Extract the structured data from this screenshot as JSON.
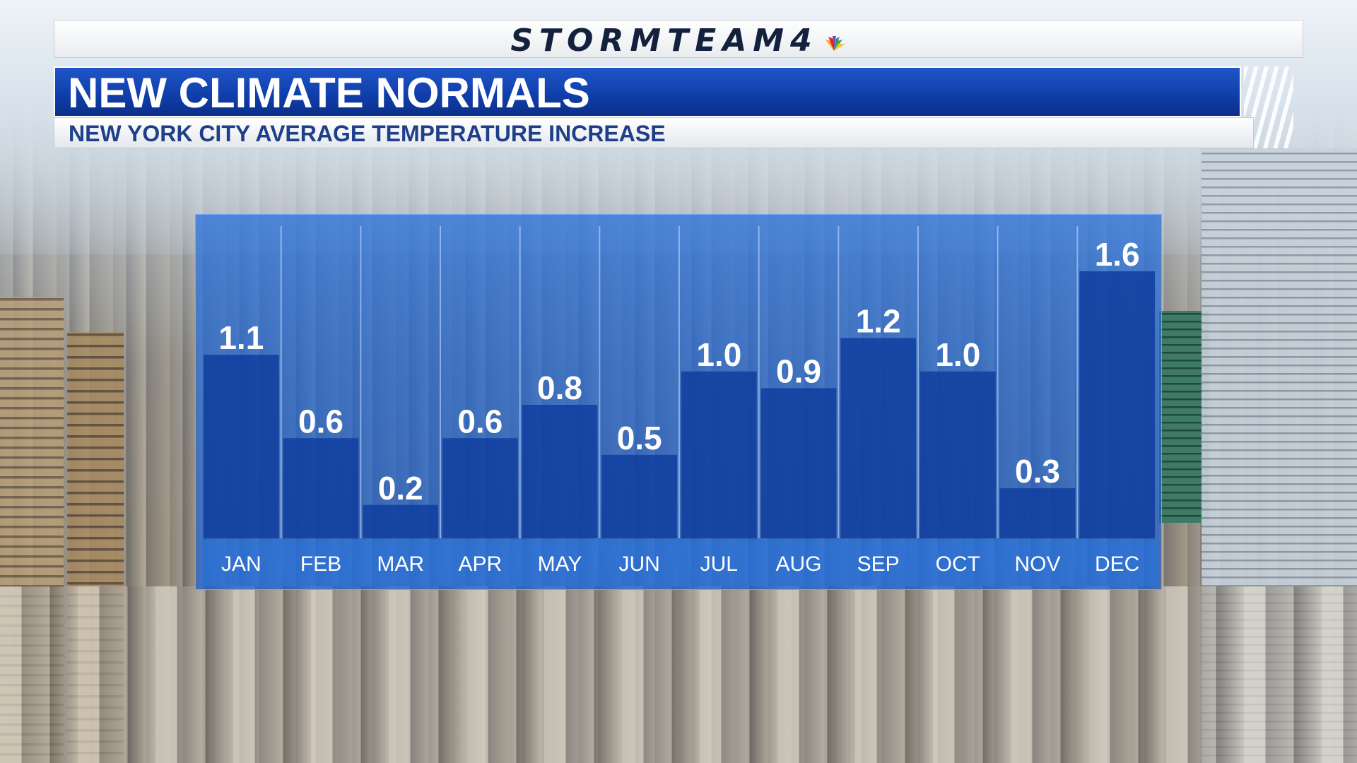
{
  "header": {
    "logo_text": "STORMTEAM4",
    "title": "NEW CLIMATE NORMALS",
    "subtitle": "NEW YORK CITY AVERAGE TEMPERATURE INCREASE"
  },
  "colors": {
    "panel": "#1f6fe0",
    "bar": "#0d3c9e",
    "title_bar": "#0f3da8",
    "label": "#ffffff",
    "subtitle_text": "#1f3f8a"
  },
  "chart_data": {
    "type": "bar",
    "title": "NEW CLIMATE NORMALS",
    "subtitle": "NEW YORK CITY AVERAGE TEMPERATURE INCREASE",
    "xlabel": "",
    "ylabel": "",
    "categories": [
      "JAN",
      "FEB",
      "MAR",
      "APR",
      "MAY",
      "JUN",
      "JUL",
      "AUG",
      "SEP",
      "OCT",
      "NOV",
      "DEC"
    ],
    "values": [
      1.1,
      0.6,
      0.2,
      0.6,
      0.8,
      0.5,
      1.0,
      0.9,
      1.2,
      1.0,
      0.3,
      1.6
    ],
    "value_labels": [
      "1.1",
      "0.6",
      "0.2",
      "0.6",
      "0.8",
      "0.5",
      "1.0",
      "0.9",
      "1.2",
      "1.0",
      "0.3",
      "1.6"
    ],
    "ylim": [
      0,
      1.6
    ],
    "grid": false,
    "legend": "none"
  }
}
